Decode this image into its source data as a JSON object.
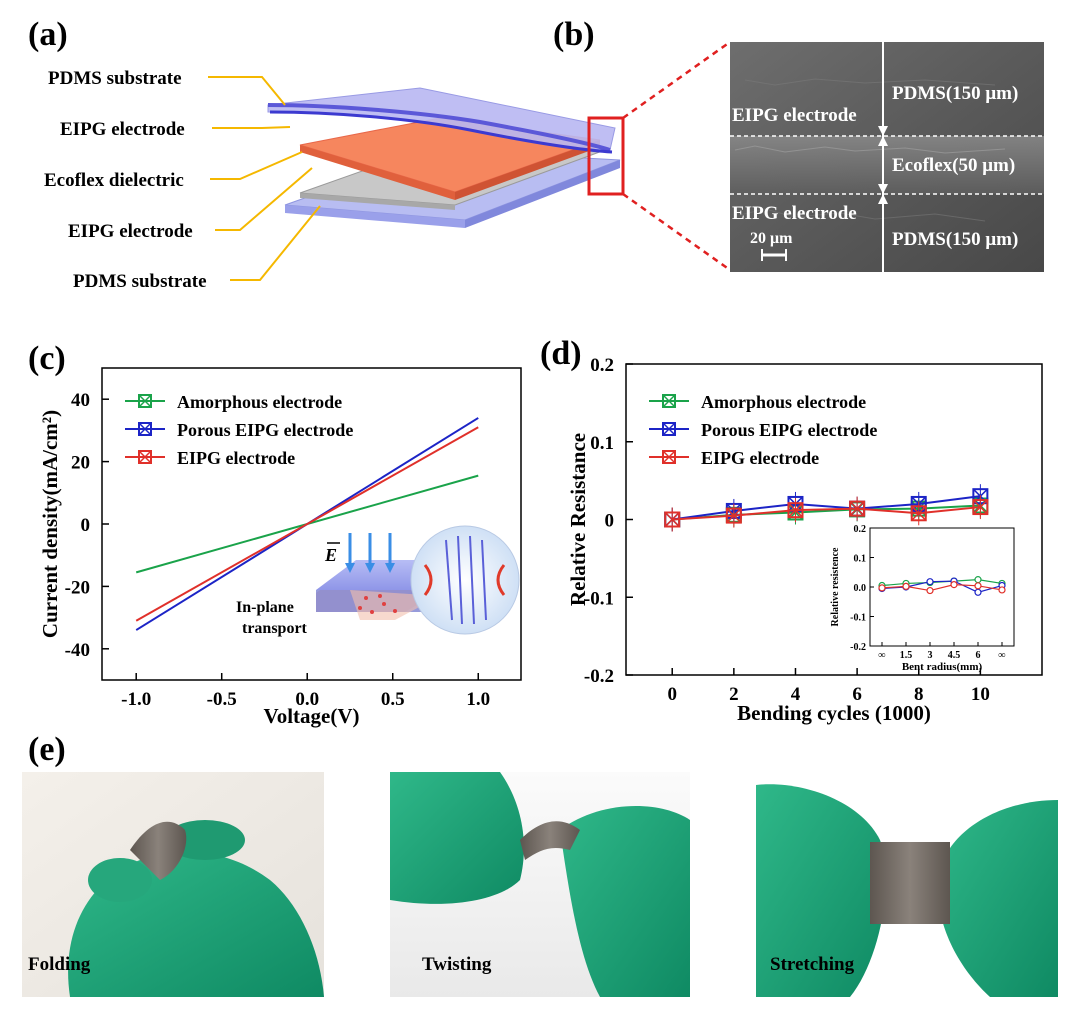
{
  "panels": {
    "a": "(a)",
    "b": "(b)",
    "c": "(c)",
    "d": "(d)",
    "e": "(e)"
  },
  "layers": {
    "labels": [
      "PDMS substrate",
      "EIPG electrode",
      "Ecoflex dielectric",
      "EIPG electrode",
      "PDMS substrate"
    ]
  },
  "sem": {
    "left_top": "EIPG electrode",
    "left_bottom": "EIPG electrode",
    "right_top": "PDMS(150 μm)",
    "right_mid": "Ecoflex(50 μm)",
    "right_bottom": "PDMS(150 μm)",
    "scale_bar": "20 μm"
  },
  "photos": {
    "labels": [
      "Folding",
      "Twisting",
      "Stretching"
    ]
  },
  "colors": {
    "green": "#1aa34a",
    "blue": "#1c24c6",
    "red": "#e0302a",
    "highlight": "#e02020",
    "leader": "#f5b800"
  },
  "chart_data": [
    {
      "type": "line",
      "title": "",
      "xlabel": "Voltage(V)",
      "ylabel": "Current density(mA/cm²)",
      "xlim": [
        -1.2,
        1.25
      ],
      "ylim": [
        -50,
        50
      ],
      "xticks": [
        -1.0,
        -0.5,
        0.0,
        0.5,
        1.0
      ],
      "xtick_labels": [
        "-1.0",
        "-0.5",
        "0.0",
        "0.5",
        "1.0"
      ],
      "yticks": [
        -40,
        -20,
        0,
        20,
        40
      ],
      "ytick_labels": [
        "-40",
        "-20",
        "0",
        "20",
        "40"
      ],
      "legend_position": "top-left",
      "series": [
        {
          "name": "Amorphous electrode",
          "color": "#1aa34a",
          "x": [
            -1.0,
            1.0
          ],
          "y": [
            -15.5,
            15.5
          ]
        },
        {
          "name": "Porous EIPG electrode",
          "color": "#1c24c6",
          "x": [
            -1.0,
            1.0
          ],
          "y": [
            -34,
            34
          ]
        },
        {
          "name": "EIPG electrode",
          "color": "#e0302a",
          "x": [
            -1.0,
            1.0
          ],
          "y": [
            -31,
            31
          ]
        }
      ],
      "annotations": [
        "E",
        "In-plane",
        "transport"
      ]
    },
    {
      "type": "line",
      "xlabel": "Bending cycles (1000)",
      "ylabel": "Relative Resistance",
      "xlim": [
        -1.5,
        12
      ],
      "ylim": [
        -0.2,
        0.2
      ],
      "xticks": [
        0,
        2,
        4,
        6,
        8,
        10
      ],
      "xtick_labels": [
        "0",
        "2",
        "4",
        "6",
        "8",
        "10"
      ],
      "yticks": [
        -0.2,
        -0.1,
        0,
        0.1,
        0.2
      ],
      "ytick_labels": [
        "-0.2",
        "-0.1",
        "0",
        "0.1",
        "0.2"
      ],
      "legend_position": "top-left",
      "series": [
        {
          "name": "Amorphous electrode",
          "color": "#1aa34a",
          "x": [
            0,
            2,
            4,
            6,
            8,
            10
          ],
          "y": [
            0,
            0.006,
            0.009,
            0.013,
            0.014,
            0.018
          ]
        },
        {
          "name": "Porous EIPG electrode",
          "color": "#1c24c6",
          "x": [
            0,
            2,
            4,
            6,
            8,
            10
          ],
          "y": [
            0,
            0.011,
            0.02,
            0.014,
            0.02,
            0.03
          ]
        },
        {
          "name": "EIPG electrode",
          "color": "#e0302a",
          "x": [
            0,
            2,
            4,
            6,
            8,
            10
          ],
          "y": [
            0,
            0.005,
            0.012,
            0.014,
            0.008,
            0.016
          ]
        }
      ]
    },
    {
      "type": "line",
      "xlabel": "Bent radius(mm)",
      "ylabel": "Relative resistence",
      "ylim": [
        -0.2,
        0.2
      ],
      "yticks": [
        -0.2,
        -0.1,
        0.0,
        0.1,
        0.2
      ],
      "ytick_labels": [
        "-0.2",
        "-0.1",
        "0.0",
        "0.1",
        "0.2"
      ],
      "categories": [
        "∞",
        "1.5",
        "3",
        "4.5",
        "6",
        "∞"
      ],
      "series": [
        {
          "name": "Amorphous electrode",
          "color": "#1aa34a",
          "values": [
            0.005,
            0.012,
            0.015,
            0.02,
            0.025,
            0.012
          ]
        },
        {
          "name": "Porous EIPG electrode",
          "color": "#1c24c6",
          "values": [
            -0.005,
            0.0,
            0.018,
            0.02,
            -0.018,
            0.005
          ]
        },
        {
          "name": "EIPG electrode",
          "color": "#e0302a",
          "values": [
            -0.003,
            0.002,
            -0.012,
            0.008,
            0.004,
            -0.01
          ]
        }
      ]
    }
  ]
}
